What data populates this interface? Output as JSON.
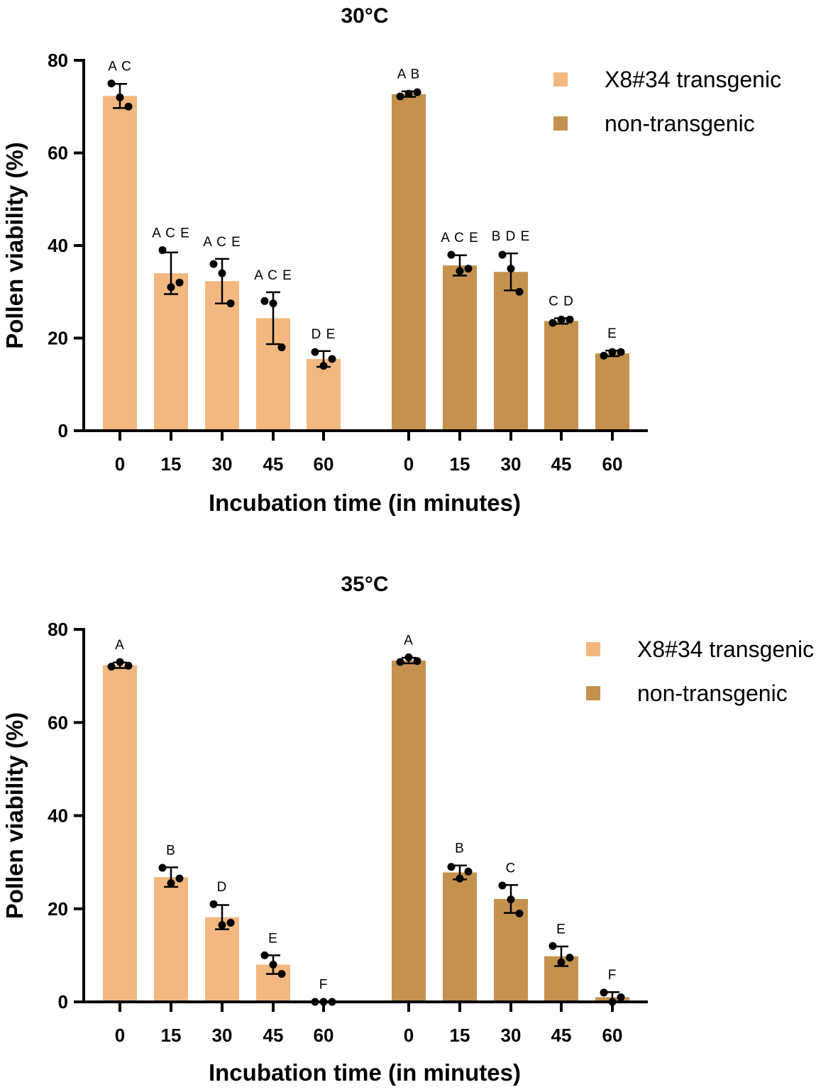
{
  "colors": {
    "transgenic": "#f2b880",
    "non_transgenic": "#c4924e",
    "axis": "#000000"
  },
  "chart_data": [
    {
      "type": "bar",
      "title": "30°C",
      "xlabel": "Incubation time (in minutes)",
      "ylabel": "Pollen viability (%)",
      "ylim": [
        0,
        80
      ],
      "yticks": [
        0,
        20,
        40,
        60,
        80
      ],
      "legend_position": "top-right",
      "series": [
        {
          "name": "X8#34 transgenic",
          "color_key": "transgenic",
          "categories": [
            "0",
            "15",
            "30",
            "45",
            "60"
          ],
          "values": [
            72.3,
            34.0,
            32.3,
            24.3,
            15.5
          ],
          "error": [
            2.6,
            4.5,
            4.8,
            5.6,
            1.7
          ],
          "points": [
            [
              75,
              72,
              70
            ],
            [
              39,
              31,
              32
            ],
            [
              36,
              34,
              27.5
            ],
            [
              28,
              27.5,
              18
            ],
            [
              17,
              14,
              15.5
            ]
          ],
          "letters": [
            "A C",
            "A C E",
            "A C E",
            "A C E",
            "D E"
          ]
        },
        {
          "name": "non-transgenic",
          "color_key": "non_transgenic",
          "categories": [
            "0",
            "15",
            "30",
            "45",
            "60"
          ],
          "values": [
            72.7,
            35.7,
            34.3,
            23.7,
            16.7
          ],
          "error": [
            0.6,
            2.2,
            4.0,
            0.6,
            0.6
          ],
          "points": [
            [
              72.2,
              72.8,
              73.1
            ],
            [
              38,
              34.5,
              35
            ],
            [
              38,
              35,
              30
            ],
            [
              23.3,
              24,
              24
            ],
            [
              16.2,
              17,
              17
            ]
          ],
          "letters": [
            "A B",
            "A C E",
            "B D E",
            "C D",
            "E"
          ]
        }
      ]
    },
    {
      "type": "bar",
      "title": "35°C",
      "xlabel": "Incubation time (in minutes)",
      "ylabel": "Pollen viability (%)",
      "ylim": [
        0,
        80
      ],
      "yticks": [
        0,
        20,
        40,
        60,
        80
      ],
      "legend_position": "top-right",
      "series": [
        {
          "name": "X8#34 transgenic",
          "color_key": "transgenic",
          "categories": [
            "0",
            "15",
            "30",
            "45",
            "60"
          ],
          "values": [
            72.3,
            26.8,
            18.2,
            8.0,
            0.1
          ],
          "error": [
            0.6,
            2.1,
            2.6,
            2.0,
            0.0
          ],
          "points": [
            [
              72,
              73,
              72.2
            ],
            [
              28.8,
              25.5,
              26.5
            ],
            [
              21,
              16.5,
              17
            ],
            [
              10,
              8,
              6
            ],
            [
              0,
              0,
              0
            ]
          ],
          "letters": [
            "A",
            "B",
            "D",
            "E",
            "F"
          ]
        },
        {
          "name": "non-transgenic",
          "color_key": "non_transgenic",
          "categories": [
            "0",
            "15",
            "30",
            "45",
            "60"
          ],
          "values": [
            73.3,
            27.8,
            22.1,
            9.8,
            1.0
          ],
          "error": [
            0.6,
            1.5,
            3.0,
            2.1,
            1.1
          ],
          "points": [
            [
              73,
              74,
              73.2
            ],
            [
              29,
              26.5,
              28
            ],
            [
              25,
              22,
              19
            ],
            [
              12,
              8.5,
              9.5
            ],
            [
              2,
              0,
              1
            ]
          ],
          "letters": [
            "A",
            "B",
            "C",
            "E",
            "F"
          ]
        }
      ]
    }
  ]
}
